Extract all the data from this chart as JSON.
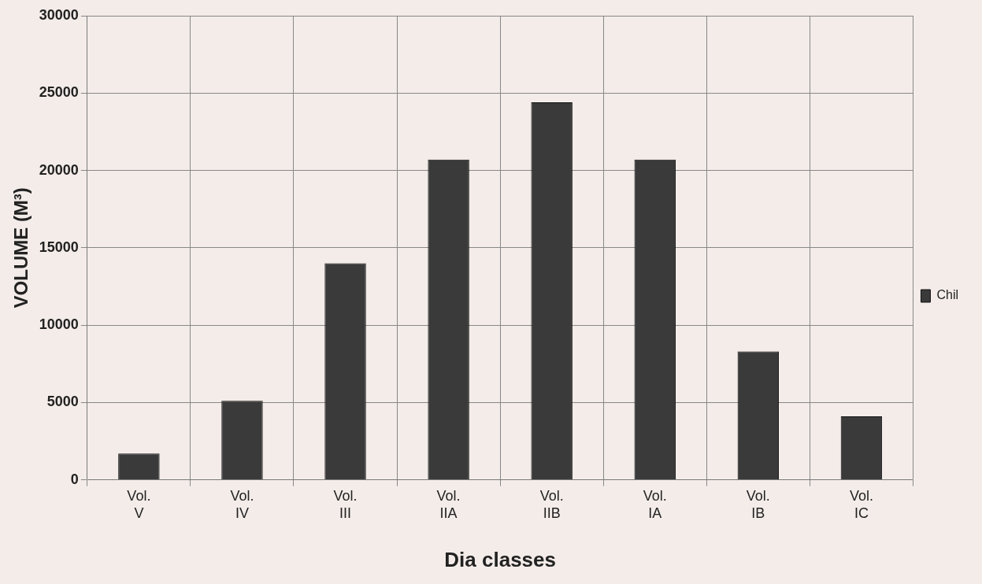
{
  "chart_data": {
    "type": "bar",
    "xlabel": "Dia classes",
    "ylabel": "VOLUME (M³)",
    "categories": [
      "Vol. V",
      "Vol. IV",
      "Vol. III",
      "Vol. IIA",
      "Vol. IIB",
      "Vol. IA",
      "Vol. IB",
      "Vol. IC"
    ],
    "series": [
      {
        "name": "Chil",
        "color": "#3a3a3a",
        "values": [
          1700,
          5100,
          14000,
          20700,
          24400,
          20700,
          8300,
          4100
        ]
      }
    ],
    "ylim": [
      0,
      30000
    ],
    "yticks": [
      0,
      5000,
      10000,
      15000,
      20000,
      25000,
      30000
    ],
    "grid": true,
    "legend": "right"
  }
}
